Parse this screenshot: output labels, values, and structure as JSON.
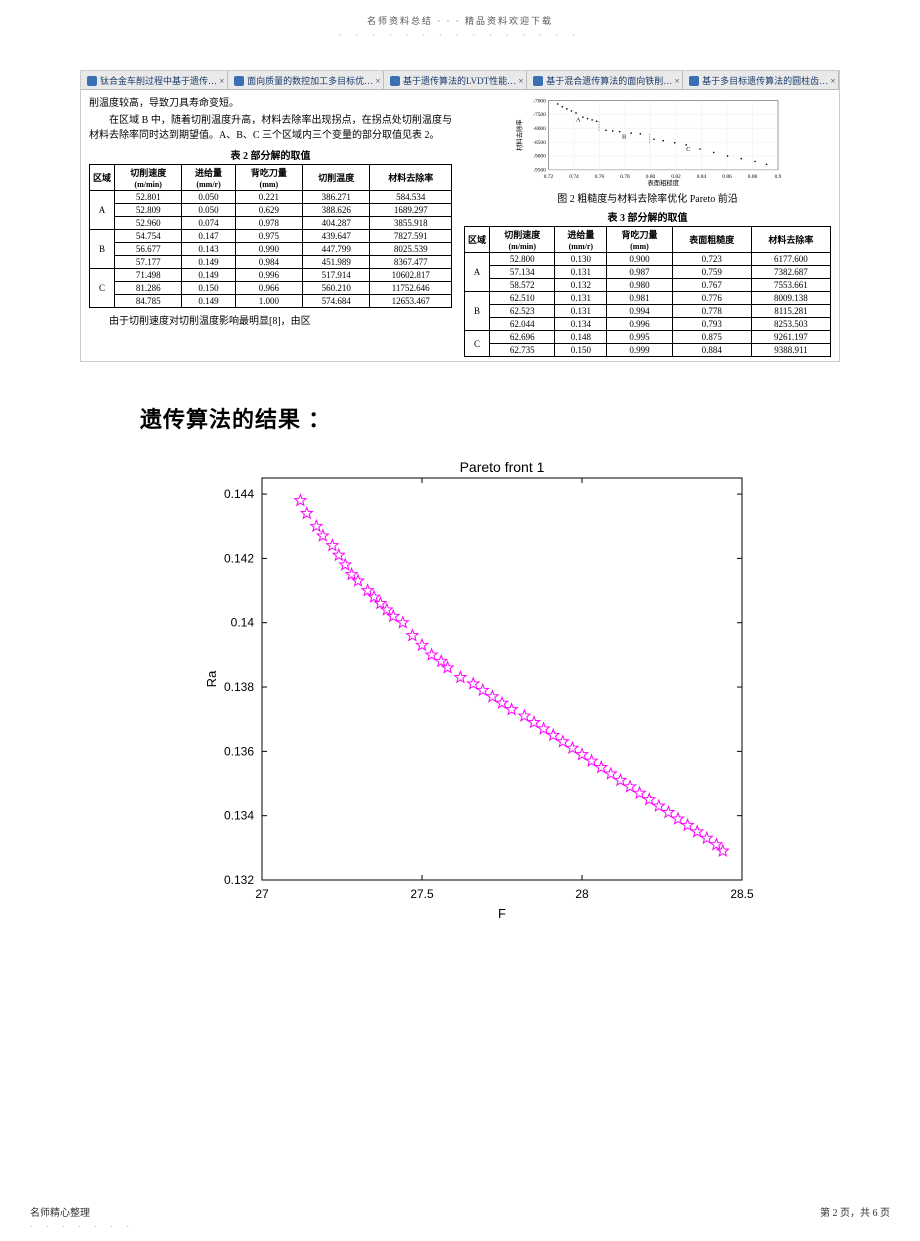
{
  "header": {
    "title": "名师资料总结  · · ·  精品资料欢迎下载",
    "dots": "· · · · · · · · · · · · · · ·"
  },
  "tabs": [
    "钛合金车削过程中基于遗传…  ×",
    "面向质量的数控加工多目标优…  ×",
    "基于遗传算法的LVDT性能…  ×",
    "基于混合遗传算法的面向铁削…  ×",
    "基于多目标遗传算法的圆柱齿…  ×"
  ],
  "paragraphs": {
    "p1": "削温度较高，导致刀具寿命变短。",
    "p2": "在区域 B 中，随着切削温度升高，材料去除率出现拐点，在拐点处切削温度与材料去除率同时达到期望值。A、B、C 三个区域内三个变量的部分取值见表 2。",
    "p3": "由于切削速度对切削温度影响最明显[8]，由区"
  },
  "table2": {
    "title": "表 2   部分解的取值",
    "headers": [
      "区域",
      "切削速度\n(m/min)",
      "进给量\n(mm/r)",
      "背吃刀量\n(mm)",
      "切削温度",
      "材料去除率"
    ],
    "rows": [
      [
        "A",
        "52.801",
        "0.050",
        "0.221",
        "386.271",
        "584.534"
      ],
      [
        "A",
        "52.809",
        "0.050",
        "0.629",
        "388.626",
        "1689.297"
      ],
      [
        "A",
        "52.960",
        "0.074",
        "0.978",
        "404.287",
        "3855.918"
      ],
      [
        "B",
        "54.754",
        "0.147",
        "0.975",
        "439.647",
        "7827.591"
      ],
      [
        "B",
        "56.677",
        "0.143",
        "0.990",
        "447.799",
        "8025.539"
      ],
      [
        "B",
        "57.177",
        "0.149",
        "0.984",
        "451.989",
        "8367.477"
      ],
      [
        "C",
        "71.498",
        "0.149",
        "0.996",
        "517.914",
        "10602.817"
      ],
      [
        "C",
        "81.286",
        "0.150",
        "0.966",
        "560.210",
        "11752.646"
      ],
      [
        "C",
        "84.785",
        "0.149",
        "1.000",
        "574.684",
        "12653.467"
      ]
    ]
  },
  "table3": {
    "title": "表 3   部分解的取值",
    "caption": "图 2   粗糙度与材料去除率优化 Pareto 前沿",
    "headers": [
      "区域",
      "切削速度\n(m/min)",
      "进给量\n(mm/r)",
      "背吃刀量\n(mm)",
      "表面粗糙度",
      "材料去除率"
    ],
    "rows": [
      [
        "A",
        "52.800",
        "0.130",
        "0.900",
        "0.723",
        "6177.600"
      ],
      [
        "A",
        "57.134",
        "0.131",
        "0.987",
        "0.759",
        "7382.687"
      ],
      [
        "A",
        "58.572",
        "0.132",
        "0.980",
        "0.767",
        "7553.661"
      ],
      [
        "B",
        "62.510",
        "0.131",
        "0.981",
        "0.776",
        "8009.138"
      ],
      [
        "B",
        "62.523",
        "0.131",
        "0.994",
        "0.778",
        "8115.281"
      ],
      [
        "B",
        "62.044",
        "0.134",
        "0.996",
        "0.793",
        "8253.503"
      ],
      [
        "C",
        "62.696",
        "0.148",
        "0.995",
        "0.875",
        "9261.197"
      ],
      [
        "C",
        "62.735",
        "0.150",
        "0.999",
        "0.884",
        "9388.911"
      ]
    ]
  },
  "tiny_chart": {
    "yticks": [
      "-7000",
      "-7500",
      "-8000",
      "-8500",
      "-9000",
      "-9500"
    ],
    "xticks": [
      "0.72",
      "0.74",
      "0.76",
      "0.78",
      "0.80",
      "0.82",
      "0.84",
      "0.86",
      "0.88",
      "0.9"
    ],
    "ylabel": "材料去除率",
    "xlabel": "表面粗糙度",
    "bg": "#ffffff",
    "grid": "#e2e6ea",
    "pt": "#000000",
    "regions": [
      "A",
      "B",
      "C"
    ],
    "pts": [
      [
        0.04,
        0.05
      ],
      [
        0.06,
        0.09
      ],
      [
        0.08,
        0.12
      ],
      [
        0.1,
        0.15
      ],
      [
        0.12,
        0.18
      ],
      [
        0.15,
        0.24
      ],
      [
        0.17,
        0.26
      ],
      [
        0.19,
        0.28
      ],
      [
        0.21,
        0.3
      ],
      [
        0.25,
        0.43
      ],
      [
        0.28,
        0.44
      ],
      [
        0.31,
        0.45
      ],
      [
        0.36,
        0.47
      ],
      [
        0.4,
        0.48
      ],
      [
        0.46,
        0.56
      ],
      [
        0.5,
        0.58
      ],
      [
        0.55,
        0.61
      ],
      [
        0.6,
        0.64
      ],
      [
        0.66,
        0.7
      ],
      [
        0.72,
        0.75
      ],
      [
        0.78,
        0.8
      ],
      [
        0.84,
        0.84
      ],
      [
        0.9,
        0.88
      ],
      [
        0.95,
        0.92
      ]
    ]
  },
  "section_title": "遗传算法的结果  ：",
  "pareto": {
    "title": "Pareto front 1",
    "xlabel": "F",
    "ylabel": "Ra",
    "yticks": [
      "0.144",
      "0.142",
      "0.14",
      "0.138",
      "0.136",
      "0.134",
      "0.132"
    ],
    "ylim": [
      0.132,
      0.1445
    ],
    "xticks": [
      "27",
      "27.5",
      "28",
      "28.5"
    ],
    "xlim": [
      27,
      28.5
    ],
    "bg": "#ffffff",
    "box": "#000000",
    "tickcolor": "#000000",
    "font_pt": 11,
    "marker_color": "#ff00ff",
    "marker": "star",
    "marker_size": 6,
    "points": [
      [
        27.12,
        0.1438
      ],
      [
        27.14,
        0.1434
      ],
      [
        27.17,
        0.143
      ],
      [
        27.19,
        0.1427
      ],
      [
        27.22,
        0.1424
      ],
      [
        27.24,
        0.1421
      ],
      [
        27.26,
        0.1418
      ],
      [
        27.28,
        0.1415
      ],
      [
        27.3,
        0.1413
      ],
      [
        27.33,
        0.141
      ],
      [
        27.35,
        0.1408
      ],
      [
        27.37,
        0.1406
      ],
      [
        27.39,
        0.1404
      ],
      [
        27.41,
        0.1402
      ],
      [
        27.44,
        0.14
      ],
      [
        27.47,
        0.1396
      ],
      [
        27.5,
        0.1393
      ],
      [
        27.53,
        0.139
      ],
      [
        27.56,
        0.1388
      ],
      [
        27.58,
        0.1386
      ],
      [
        27.62,
        0.1383
      ],
      [
        27.66,
        0.1381
      ],
      [
        27.69,
        0.1379
      ],
      [
        27.72,
        0.1377
      ],
      [
        27.75,
        0.1375
      ],
      [
        27.78,
        0.1373
      ],
      [
        27.82,
        0.1371
      ],
      [
        27.85,
        0.1369
      ],
      [
        27.88,
        0.1367
      ],
      [
        27.91,
        0.1365
      ],
      [
        27.94,
        0.1363
      ],
      [
        27.97,
        0.1361
      ],
      [
        28.0,
        0.1359
      ],
      [
        28.03,
        0.1357
      ],
      [
        28.06,
        0.1355
      ],
      [
        28.09,
        0.1353
      ],
      [
        28.12,
        0.1351
      ],
      [
        28.15,
        0.1349
      ],
      [
        28.18,
        0.1347
      ],
      [
        28.21,
        0.1345
      ],
      [
        28.24,
        0.1343
      ],
      [
        28.27,
        0.1341
      ],
      [
        28.3,
        0.1339
      ],
      [
        28.33,
        0.1337
      ],
      [
        28.36,
        0.1335
      ],
      [
        28.39,
        0.1333
      ],
      [
        28.42,
        0.1331
      ],
      [
        28.44,
        0.1329
      ]
    ]
  },
  "footer": {
    "left": "名师精心整理",
    "right": "第 2 页，共 6 页",
    "dots": "· · · · · · ·"
  }
}
